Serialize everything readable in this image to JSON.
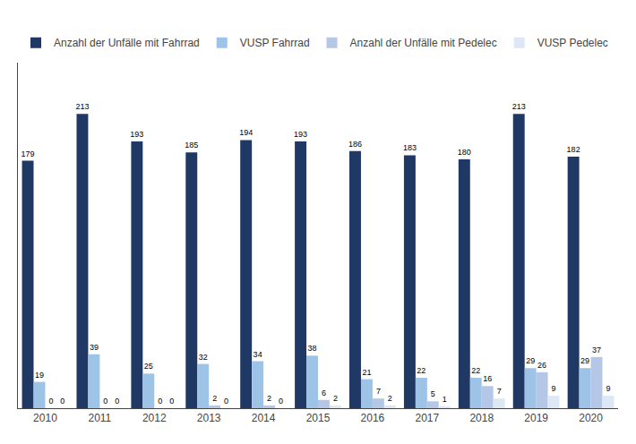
{
  "chart_data": {
    "type": "bar",
    "categories": [
      "2010",
      "2011",
      "2012",
      "2013",
      "2014",
      "2015",
      "2016",
      "2017",
      "2018",
      "2019",
      "2020"
    ],
    "series": [
      {
        "name": "Anzahl der Unfälle mit Fahrrad",
        "color": "#1f3864",
        "values": [
          179,
          213,
          193,
          185,
          194,
          193,
          186,
          183,
          180,
          213,
          182
        ]
      },
      {
        "name": "VUSP Fahrrad",
        "color": "#9dc3e6",
        "values": [
          19,
          39,
          25,
          32,
          34,
          38,
          21,
          22,
          22,
          29,
          29
        ]
      },
      {
        "name": "Anzahl der Unfälle mit Pedelec",
        "color": "#b4c7e7",
        "values": [
          0,
          0,
          0,
          2,
          2,
          6,
          7,
          5,
          16,
          26,
          37
        ]
      },
      {
        "name": "VUSP Pedelec",
        "color": "#dce9f5",
        "values": [
          0,
          0,
          0,
          0,
          0,
          2,
          2,
          1,
          7,
          9,
          9
        ]
      }
    ],
    "ylim": [
      0,
      250
    ],
    "tick_labels": "x",
    "grid": false,
    "legend": "top left",
    "data_labels": true
  }
}
